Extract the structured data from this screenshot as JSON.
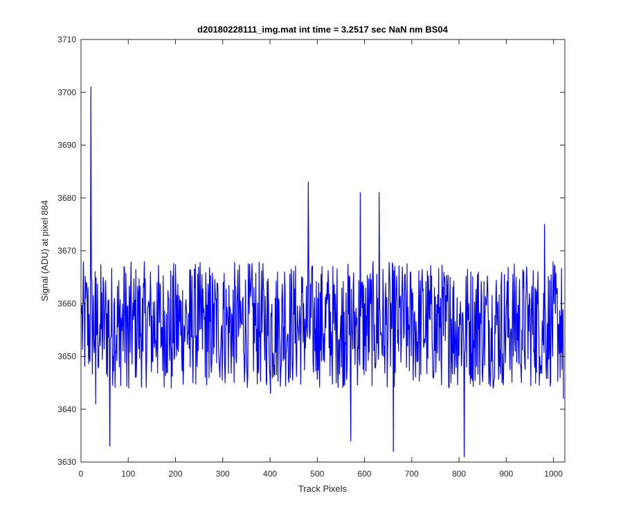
{
  "chart_data": {
    "type": "line",
    "title": "d20180228111_img.mat int time = 3.2517 sec  NaN nm BS04",
    "xlabel": "Track Pixels",
    "ylabel": "Signal (ADU) at pixel 884",
    "xlim": [
      0,
      1024
    ],
    "ylim": [
      3630,
      3710
    ],
    "xticks": [
      0,
      100,
      200,
      300,
      400,
      500,
      600,
      700,
      800,
      900,
      1000
    ],
    "yticks": [
      3630,
      3640,
      3650,
      3660,
      3670,
      3680,
      3690,
      3700,
      3710
    ],
    "grid": false,
    "line_color": "#0000ff",
    "series": [
      {
        "x": [
          1,
          11,
          21,
          31,
          41,
          51,
          61,
          71,
          81,
          91,
          101,
          111,
          121,
          131,
          141,
          151,
          161,
          171,
          181,
          191,
          201,
          211,
          221,
          231,
          241,
          251,
          261,
          271,
          281,
          291,
          301,
          311,
          321,
          331,
          341,
          351,
          361,
          371,
          381,
          391,
          401,
          411,
          421,
          431,
          441,
          451,
          461,
          471,
          481,
          491,
          501,
          511,
          521,
          531,
          541,
          551,
          561,
          571,
          581,
          591,
          601,
          611,
          621,
          631,
          641,
          651,
          661,
          671,
          681,
          691,
          701,
          711,
          721,
          731,
          741,
          751,
          761,
          771,
          781,
          791,
          801,
          811,
          821,
          831,
          841,
          851,
          861,
          871,
          881,
          891,
          901,
          911,
          921,
          931,
          941,
          951,
          961,
          971,
          981,
          991,
          1001,
          1011,
          1021
        ],
        "values": [
          3658,
          3664,
          3701,
          3641,
          3652,
          3659,
          3633,
          3661,
          3648,
          3667,
          3644,
          3657,
          3662,
          3651,
          3659,
          3649,
          3664,
          3652,
          3658,
          3644,
          3661,
          3654,
          3659,
          3648,
          3663,
          3655,
          3657,
          3646,
          3660,
          3652,
          3664,
          3657,
          3650,
          3662,
          3656,
          3648,
          3665,
          3651,
          3659,
          3657,
          3643,
          3661,
          3652,
          3666,
          3650,
          3658,
          3653,
          3660,
          3683,
          3649,
          3661,
          3655,
          3664,
          3650,
          3659,
          3648,
          3662,
          3634,
          3656,
          3681,
          3652,
          3660,
          3656,
          3681,
          3650,
          3660,
          3632,
          3655,
          3663,
          3652,
          3659,
          3649,
          3664,
          3655,
          3660,
          3647,
          3661,
          3653,
          3665,
          3650,
          3658,
          3631,
          3660,
          3653,
          3666,
          3649,
          3662,
          3650,
          3659,
          3645,
          3661,
          3654,
          3665,
          3648,
          3660,
          3655,
          3663,
          3650,
          3675,
          3652,
          3660,
          3656,
          3642
        ]
      }
    ]
  }
}
